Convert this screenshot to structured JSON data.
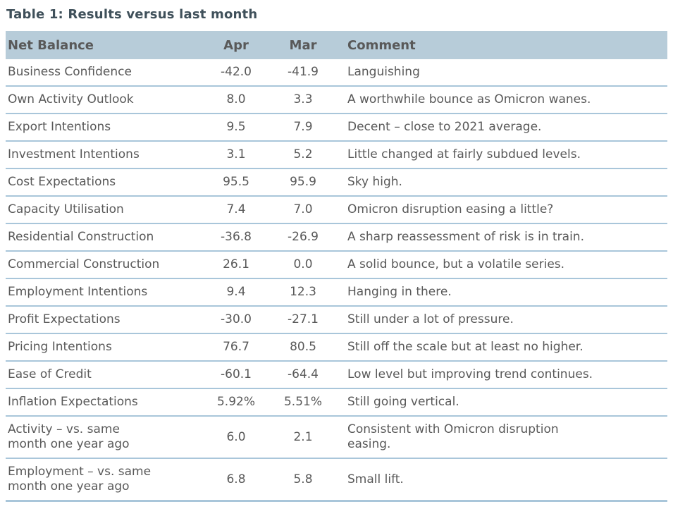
{
  "title": "Table 1: Results versus last month",
  "colors": {
    "header_background": "#b7ccd9",
    "row_divider": "#a9c6da",
    "body_text": "#595959",
    "title_text": "#3f505a"
  },
  "table": {
    "headers": [
      "Net Balance",
      "Apr",
      "Mar",
      "Comment"
    ],
    "rows": [
      {
        "label": "Business Confidence",
        "apr": "-42.0",
        "mar": "-41.9",
        "comment": "Languishing"
      },
      {
        "label": "Own Activity Outlook",
        "apr": "8.0",
        "mar": "3.3",
        "comment": "A worthwhile bounce as Omicron wanes."
      },
      {
        "label": "Export Intentions",
        "apr": "9.5",
        "mar": "7.9",
        "comment": "Decent – close to 2021 average."
      },
      {
        "label": "Investment Intentions",
        "apr": "3.1",
        "mar": "5.2",
        "comment": "Little changed at fairly subdued levels."
      },
      {
        "label": "Cost Expectations",
        "apr": "95.5",
        "mar": "95.9",
        "comment": "Sky high."
      },
      {
        "label": "Capacity Utilisation",
        "apr": "7.4",
        "mar": "7.0",
        "comment": "Omicron disruption easing a little?"
      },
      {
        "label": "Residential Construction",
        "apr": "-36.8",
        "mar": "-26.9",
        "comment": "A sharp reassessment of risk is in train."
      },
      {
        "label": "Commercial Construction",
        "apr": "26.1",
        "mar": "0.0",
        "comment": "A solid bounce, but a volatile series."
      },
      {
        "label": "Employment Intentions",
        "apr": "9.4",
        "mar": "12.3",
        "comment": "Hanging in there."
      },
      {
        "label": "Profit Expectations",
        "apr": "-30.0",
        "mar": "-27.1",
        "comment": "Still under a lot of pressure."
      },
      {
        "label": "Pricing Intentions",
        "apr": "76.7",
        "mar": "80.5",
        "comment": "Still off the scale but at least no higher."
      },
      {
        "label": "Ease of Credit",
        "apr": "-60.1",
        "mar": "-64.4",
        "comment": "Low level but improving trend continues."
      },
      {
        "label": "Inflation Expectations",
        "apr": "5.92%",
        "mar": "5.51%",
        "comment": "Still going vertical."
      },
      {
        "label": "Activity – vs. same\nmonth one year ago",
        "apr": "6.0",
        "mar": "2.1",
        "comment": "Consistent with Omicron disruption\neasing."
      },
      {
        "label": "Employment – vs. same\nmonth one year ago",
        "apr": "6.8",
        "mar": "5.8",
        "comment": "Small lift."
      }
    ]
  }
}
